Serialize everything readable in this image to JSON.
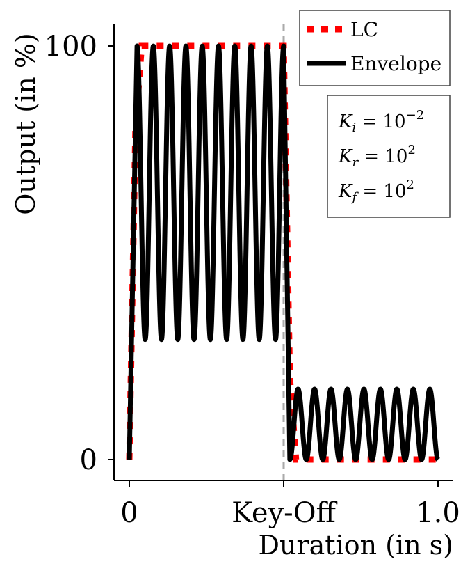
{
  "chart_data": {
    "type": "line",
    "xlabel": "Duration (in s)",
    "ylabel": "Output (in %)",
    "xlim": [
      -0.05,
      1.05
    ],
    "ylim": [
      -5,
      105
    ],
    "x_ticks": [
      {
        "value": 0,
        "label": "0"
      },
      {
        "value": 0.5,
        "label": "Key-Off"
      },
      {
        "value": 1.0,
        "label": "1.0"
      }
    ],
    "y_ticks": [
      {
        "value": 0,
        "label": "0"
      },
      {
        "value": 100,
        "label": "100"
      }
    ],
    "key_off": 0.5,
    "grid": false,
    "legend_placement": "top-right",
    "series": [
      {
        "name": "LC",
        "color": "#ff0000",
        "style": "dotted",
        "x": [
          0,
          0.02,
          0.04,
          0.48,
          0.5,
          0.52,
          0.54,
          1.0
        ],
        "y": [
          0,
          80,
          100,
          100,
          100,
          20,
          0,
          0
        ]
      },
      {
        "name": "Envelope",
        "color": "#000000",
        "style": "solid",
        "attack": {
          "x": [
            0,
            0.025
          ],
          "y": [
            0,
            100
          ]
        },
        "sustain_oscillation": {
          "x_start": 0.025,
          "x_end": 0.5,
          "peak": 100,
          "trough": 29,
          "cycles": 9
        },
        "release_oscillation": {
          "x_start": 0.52,
          "x_end": 1.0,
          "peak": 17,
          "trough": 0,
          "cycles": 9
        }
      }
    ],
    "annotation": {
      "lines": [
        {
          "sym": "K",
          "sub": "i",
          "rel": " = 10",
          "sup": "−2"
        },
        {
          "sym": "K",
          "sub": "r",
          "rel": " = 10",
          "sup": "2"
        },
        {
          "sym": "K",
          "sub": "f",
          "rel": " = 10",
          "sup": "2"
        }
      ]
    }
  }
}
